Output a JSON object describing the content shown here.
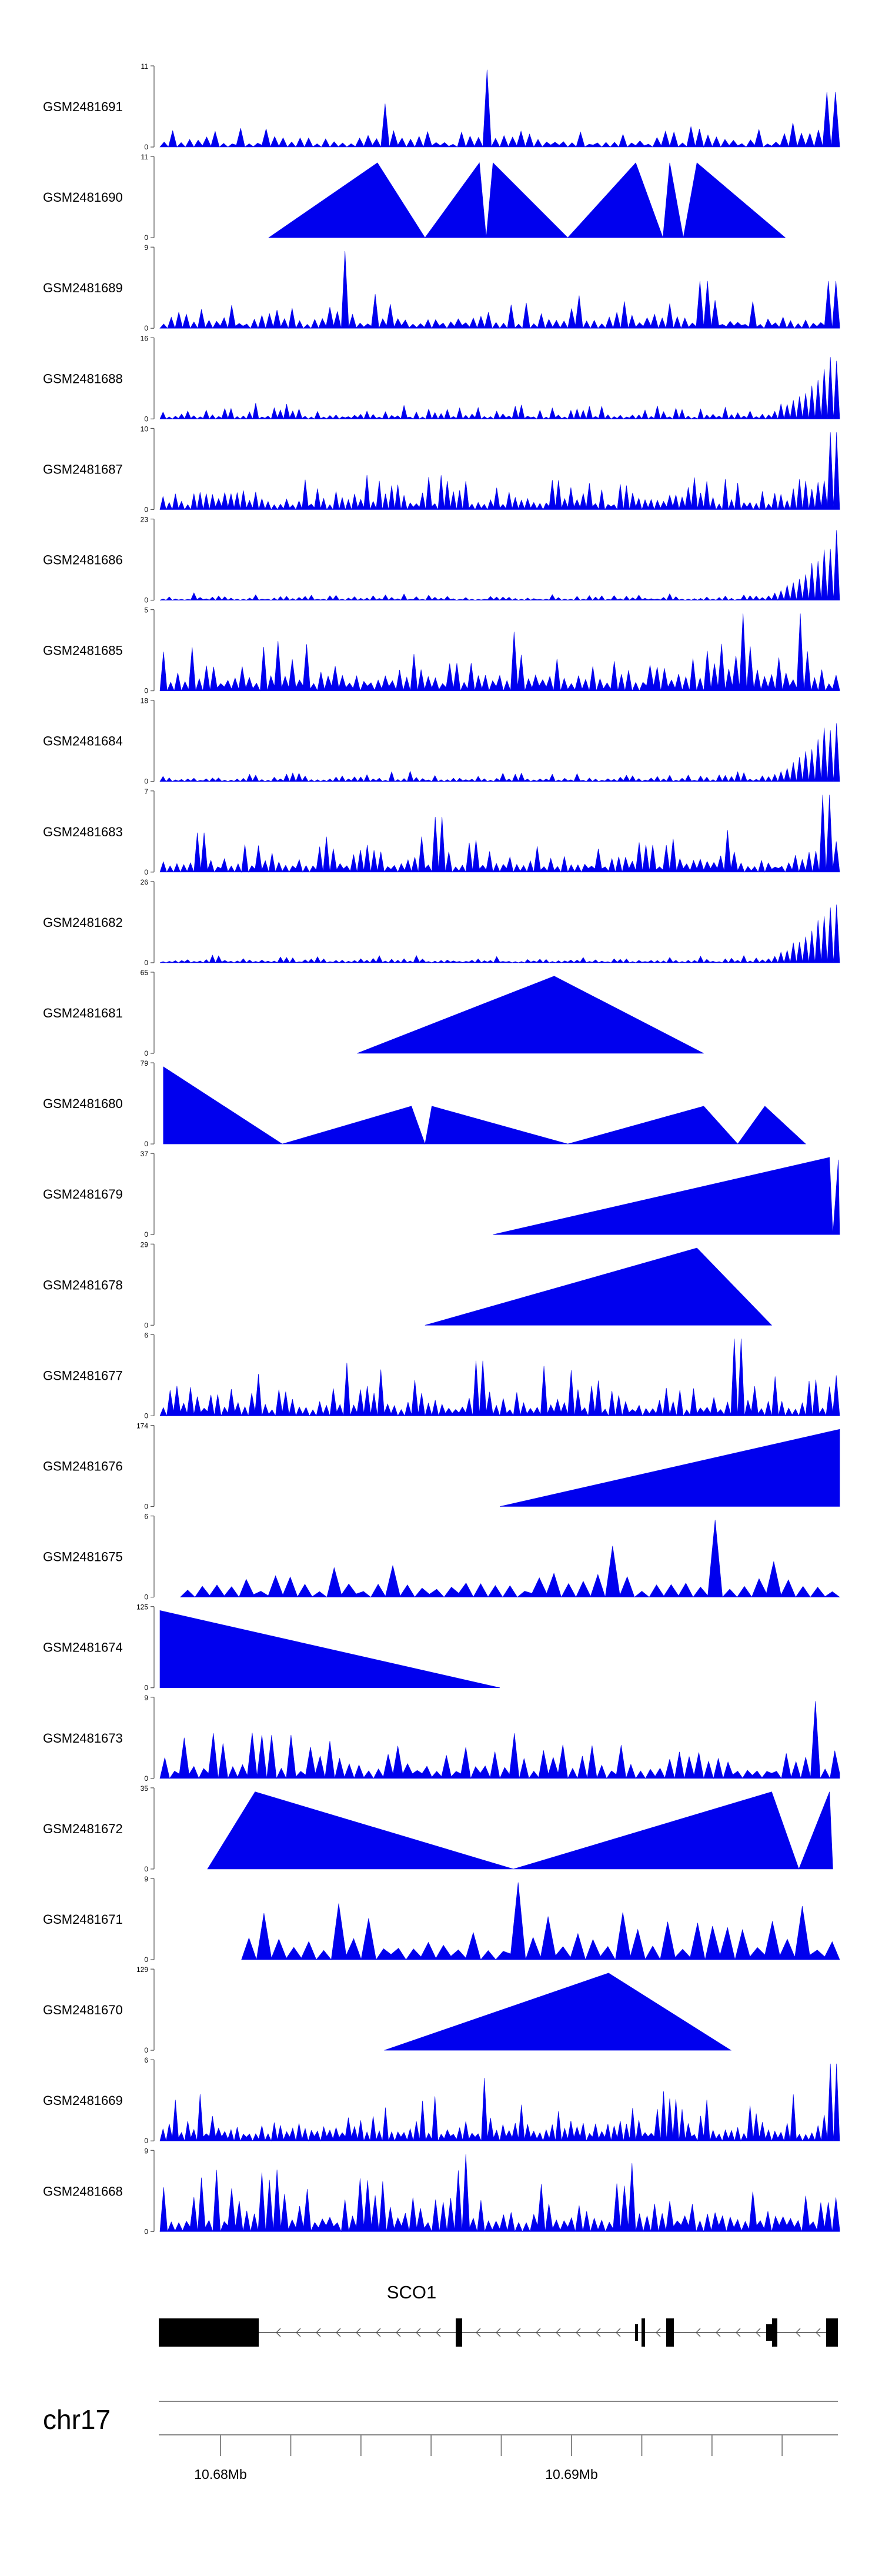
{
  "chart_data": {
    "type": "area",
    "colors": {
      "track_fill": "#0000ee",
      "axis": "#000000",
      "gene": "#000000"
    },
    "tracks": [
      {
        "name": "GSM2481691",
        "ymax": 11,
        "ymin": 0
      },
      {
        "name": "GSM2481690",
        "ymax": 11,
        "ymin": 0
      },
      {
        "name": "GSM2481689",
        "ymax": 9,
        "ymin": 0
      },
      {
        "name": "GSM2481688",
        "ymax": 16,
        "ymin": 0
      },
      {
        "name": "GSM2481687",
        "ymax": 10,
        "ymin": 0
      },
      {
        "name": "GSM2481686",
        "ymax": 23,
        "ymin": 0
      },
      {
        "name": "GSM2481685",
        "ymax": 5,
        "ymin": 0
      },
      {
        "name": "GSM2481684",
        "ymax": 18,
        "ymin": 0
      },
      {
        "name": "GSM2481683",
        "ymax": 7,
        "ymin": 0
      },
      {
        "name": "GSM2481682",
        "ymax": 26,
        "ymin": 0
      },
      {
        "name": "GSM2481681",
        "ymax": 65,
        "ymin": 0
      },
      {
        "name": "GSM2481680",
        "ymax": 79,
        "ymin": 0
      },
      {
        "name": "GSM2481679",
        "ymax": 37,
        "ymin": 0
      },
      {
        "name": "GSM2481678",
        "ymax": 29,
        "ymin": 0
      },
      {
        "name": "GSM2481677",
        "ymax": 6,
        "ymin": 0
      },
      {
        "name": "GSM2481676",
        "ymax": 174,
        "ymin": 0
      },
      {
        "name": "GSM2481675",
        "ymax": 6,
        "ymin": 0
      },
      {
        "name": "GSM2481674",
        "ymax": 125,
        "ymin": 0
      },
      {
        "name": "GSM2481673",
        "ymax": 9,
        "ymin": 0
      },
      {
        "name": "GSM2481672",
        "ymax": 35,
        "ymin": 0
      },
      {
        "name": "GSM2481671",
        "ymax": 9,
        "ymin": 0
      },
      {
        "name": "GSM2481670",
        "ymax": 129,
        "ymin": 0
      },
      {
        "name": "GSM2481669",
        "ymax": 6,
        "ymin": 0
      },
      {
        "name": "GSM2481668",
        "ymax": 9,
        "ymin": 0
      }
    ],
    "gene": {
      "name": "SCO1",
      "strand": "-"
    },
    "chromosome": "chr17",
    "x_tick_labels": [
      "10.68Mb",
      "10.69Mb"
    ]
  }
}
